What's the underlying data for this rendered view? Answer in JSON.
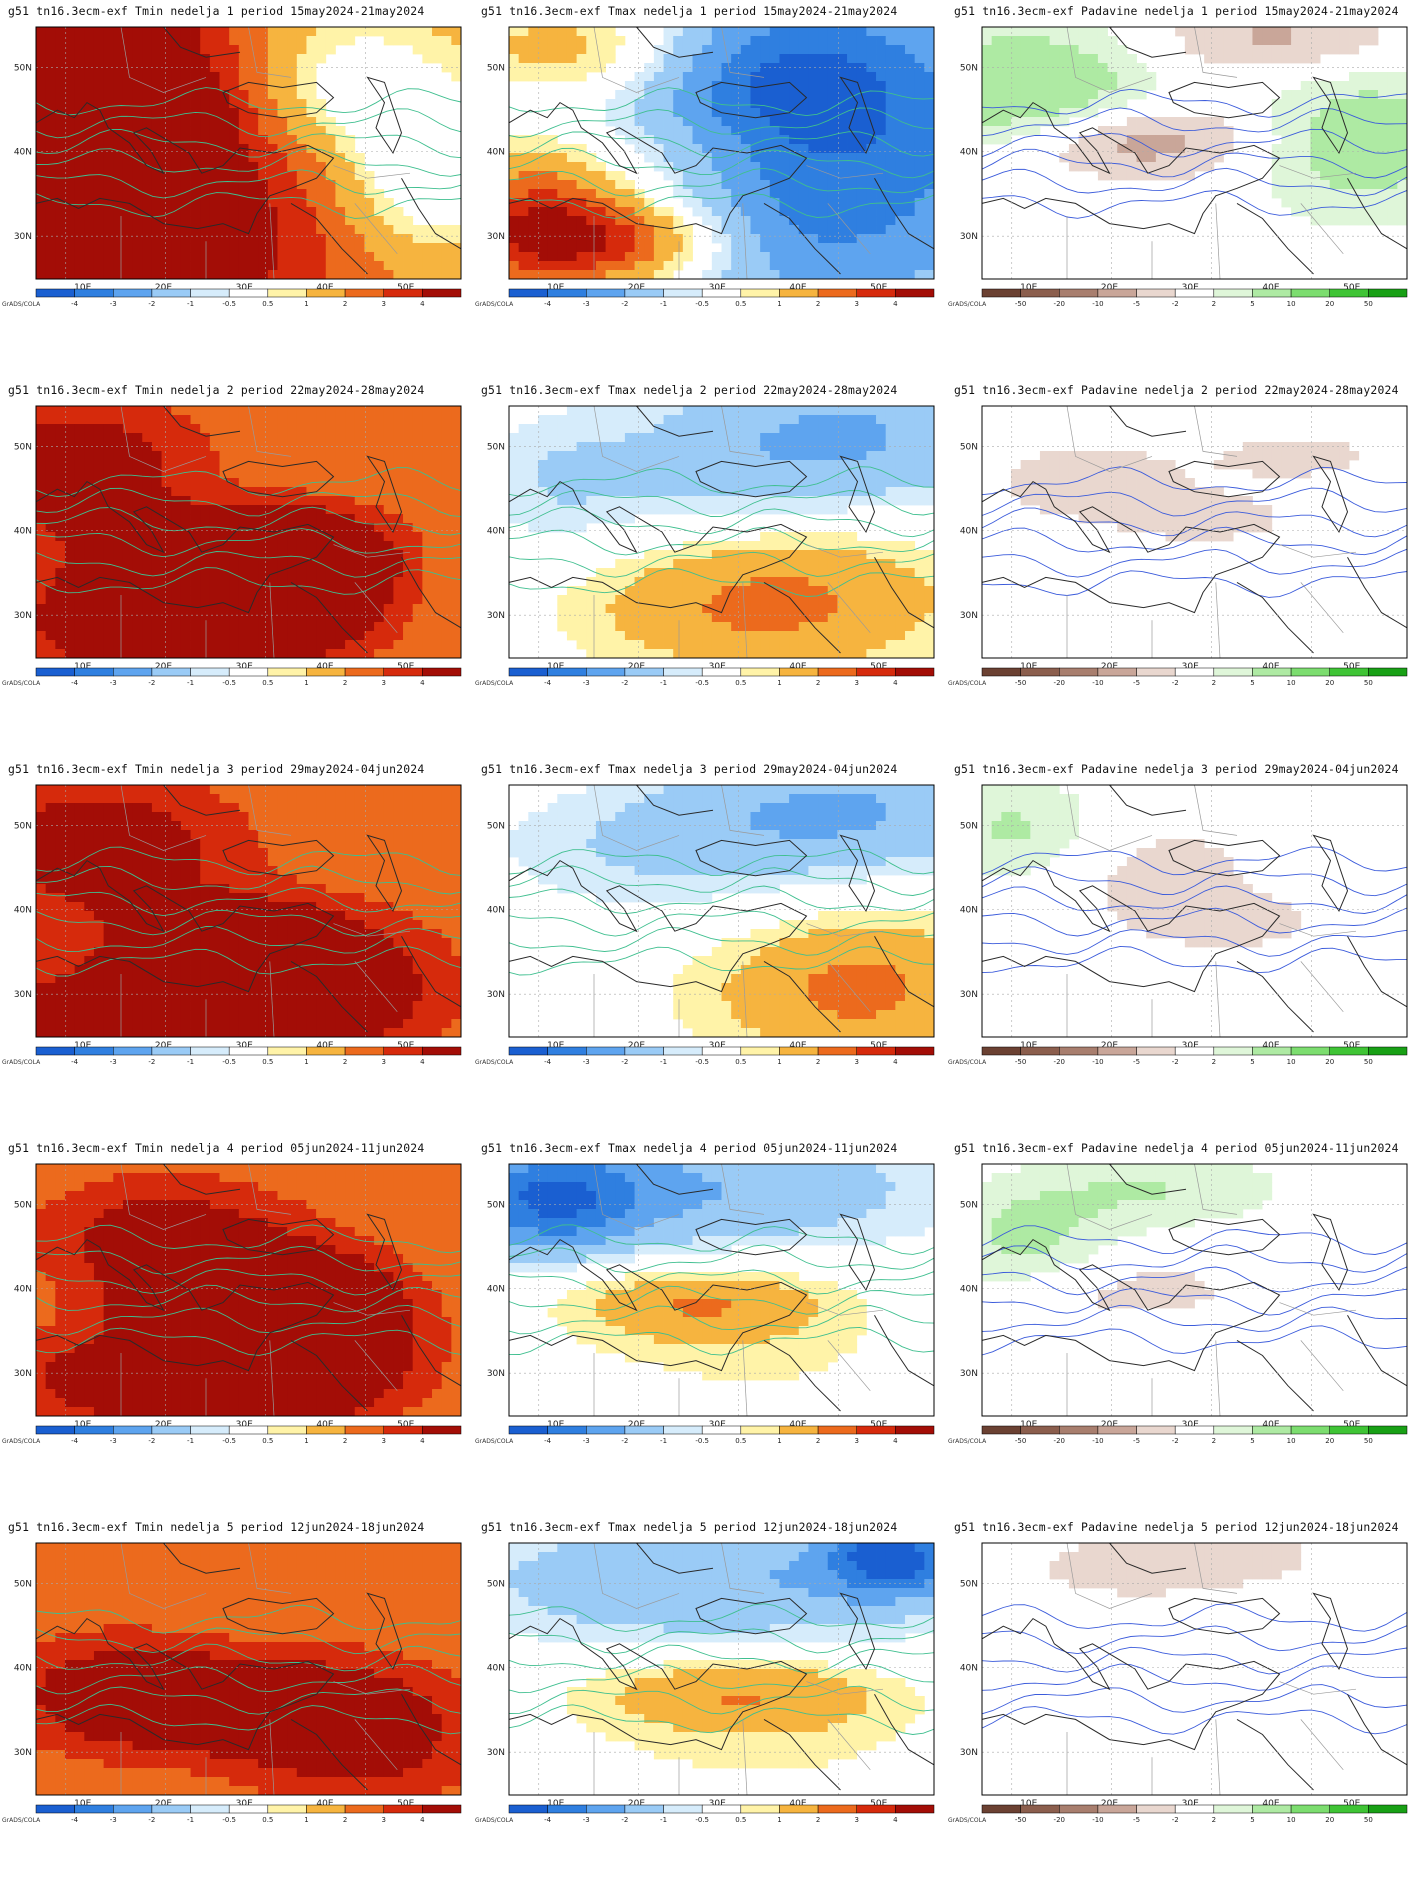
{
  "rows": [
    {
      "week": "1",
      "period": "15may2024-21may2024",
      "panels": [
        {
          "var": "Tmin",
          "title": "g51 tn16.3ecm-exf Tmin nedelja 1 period 15may2024-21may2024",
          "palette": "temp",
          "blobs": [
            [
              0.05,
              0.1,
              0.45,
              0.5,
              4
            ],
            [
              0.28,
              0.35,
              0.18,
              0.18,
              3
            ],
            [
              0.15,
              0.85,
              0.55,
              0.35,
              4
            ],
            [
              0.55,
              0.55,
              0.25,
              0.2,
              1
            ],
            [
              0.8,
              0.4,
              0.35,
              0.4,
              -2
            ],
            [
              0.7,
              0.1,
              0.25,
              0.3,
              -1
            ],
            [
              0.92,
              0.7,
              0.2,
              0.3,
              -1.5
            ]
          ],
          "base": 2
        },
        {
          "var": "Tmax",
          "title": "g51 tn16.3ecm-exf Tmax nedelja 1 period 15may2024-21may2024",
          "palette": "temp",
          "blobs": [
            [
              0.15,
              0.08,
              0.3,
              0.2,
              2
            ],
            [
              0.25,
              0.85,
              0.3,
              0.18,
              4
            ],
            [
              0.05,
              0.75,
              0.2,
              0.3,
              3
            ],
            [
              0.4,
              0.55,
              0.3,
              0.2,
              1
            ],
            [
              0.8,
              0.5,
              0.45,
              0.6,
              -3
            ],
            [
              0.65,
              0.2,
              0.3,
              0.3,
              -2
            ],
            [
              0.55,
              0.8,
              0.3,
              0.25,
              -1
            ]
          ],
          "base": -0.5
        },
        {
          "var": "Padavine",
          "title": "g51 tn16.3ecm-exf Padavine nedelja 1 period 15may2024-21may2024",
          "palette": "prec",
          "blobs": [
            [
              0.1,
              0.25,
              0.3,
              0.25,
              10
            ],
            [
              0.9,
              0.45,
              0.25,
              0.3,
              8
            ],
            [
              0.35,
              0.45,
              0.3,
              0.15,
              -8
            ],
            [
              0.7,
              0.05,
              0.3,
              0.15,
              -6
            ]
          ],
          "base": 0
        }
      ]
    },
    {
      "week": "2",
      "period": "22may2024-28may2024",
      "panels": [
        {
          "var": "Tmin",
          "title": "g51 tn16.3ecm-exf Tmin nedelja 2 period 22may2024-28may2024",
          "palette": "temp",
          "blobs": [
            [
              0.1,
              0.25,
              0.3,
              0.3,
              3
            ],
            [
              0.3,
              0.85,
              0.35,
              0.25,
              4
            ],
            [
              0.65,
              0.7,
              0.2,
              0.25,
              4
            ],
            [
              0.5,
              0.55,
              0.3,
              0.15,
              3
            ],
            [
              0.85,
              0.05,
              0.35,
              0.15,
              0.5
            ]
          ],
          "base": 2
        },
        {
          "var": "Tmax",
          "title": "g51 tn16.3ecm-exf Tmax nedelja 2 period 22may2024-28may2024",
          "palette": "temp",
          "blobs": [
            [
              0.8,
              0.1,
              0.4,
              0.3,
              -2
            ],
            [
              0.4,
              0.3,
              0.4,
              0.25,
              -1
            ],
            [
              0.65,
              0.75,
              0.4,
              0.3,
              2
            ],
            [
              0.45,
              0.85,
              0.4,
              0.2,
              0.5
            ],
            [
              0.1,
              0.3,
              0.15,
              0.3,
              -0.5
            ]
          ],
          "base": 0
        },
        {
          "var": "Padavine",
          "title": "g51 tn16.3ecm-exf Padavine nedelja 2 period 22may2024-28may2024",
          "palette": "prec",
          "blobs": [
            [
              0.25,
              0.3,
              0.3,
              0.2,
              -3
            ],
            [
              0.55,
              0.45,
              0.2,
              0.1,
              -3
            ],
            [
              0.75,
              0.2,
              0.2,
              0.1,
              -3
            ]
          ],
          "base": 0
        }
      ]
    },
    {
      "week": "3",
      "period": "29may2024-04jun2024",
      "panels": [
        {
          "var": "Tmin",
          "title": "g51 tn16.3ecm-exf Tmin nedelja 3 period 29may2024-04jun2024",
          "palette": "temp",
          "blobs": [
            [
              0.15,
              0.25,
              0.35,
              0.3,
              3
            ],
            [
              0.45,
              0.6,
              0.25,
              0.15,
              3
            ],
            [
              0.25,
              0.9,
              0.35,
              0.2,
              4
            ],
            [
              0.7,
              0.8,
              0.3,
              0.3,
              3
            ]
          ],
          "base": 2
        },
        {
          "var": "Tmax",
          "title": "g51 tn16.3ecm-exf Tmax nedelja 3 period 29may2024-04jun2024",
          "palette": "temp",
          "blobs": [
            [
              0.8,
              0.1,
              0.4,
              0.25,
              -2
            ],
            [
              0.35,
              0.25,
              0.4,
              0.25,
              -1
            ],
            [
              0.85,
              0.8,
              0.3,
              0.3,
              2
            ],
            [
              0.6,
              0.85,
              0.35,
              0.25,
              0.5
            ]
          ],
          "base": 0
        },
        {
          "var": "Padavine",
          "title": "g51 tn16.3ecm-exf Padavine nedelja 3 period 29may2024-04jun2024",
          "palette": "prec",
          "blobs": [
            [
              0.08,
              0.18,
              0.2,
              0.2,
              6
            ],
            [
              0.4,
              0.35,
              0.3,
              0.25,
              -3
            ],
            [
              0.6,
              0.55,
              0.2,
              0.1,
              -3
            ]
          ],
          "base": 0
        }
      ]
    },
    {
      "week": "4",
      "period": "05jun2024-11jun2024",
      "panels": [
        {
          "var": "Tmin",
          "title": "g51 tn16.3ecm-exf Tmin nedelja 4 period 05jun2024-11jun2024",
          "palette": "temp",
          "blobs": [
            [
              0.3,
              0.3,
              0.3,
              0.25,
              3
            ],
            [
              0.5,
              0.55,
              0.25,
              0.15,
              4
            ],
            [
              0.65,
              0.65,
              0.25,
              0.3,
              4
            ],
            [
              0.35,
              0.85,
              0.4,
              0.2,
              4
            ],
            [
              0.85,
              0.05,
              0.2,
              0.1,
              0.5
            ]
          ],
          "base": 2
        },
        {
          "var": "Tmax",
          "title": "g51 tn16.3ecm-exf Tmax nedelja 4 period 05jun2024-11jun2024",
          "palette": "temp",
          "blobs": [
            [
              0.4,
              0.1,
              0.6,
              0.25,
              -2
            ],
            [
              0.1,
              0.15,
              0.2,
              0.2,
              -3
            ],
            [
              0.45,
              0.55,
              0.3,
              0.15,
              2
            ],
            [
              0.6,
              0.8,
              0.5,
              0.25,
              0.5
            ]
          ],
          "base": 0
        },
        {
          "var": "Padavine",
          "title": "g51 tn16.3ecm-exf Padavine nedelja 4 period 05jun2024-11jun2024",
          "palette": "prec",
          "blobs": [
            [
              0.1,
              0.3,
              0.2,
              0.2,
              6
            ],
            [
              0.4,
              0.1,
              0.3,
              0.15,
              5
            ],
            [
              0.35,
              0.5,
              0.3,
              0.15,
              -3
            ]
          ],
          "base": 0
        }
      ]
    },
    {
      "week": "5",
      "period": "12jun2024-18jun2024",
      "panels": [
        {
          "var": "Tmin",
          "title": "g51 tn16.3ecm-exf Tmin nedelja 5 period 12jun2024-18jun2024",
          "palette": "temp",
          "blobs": [
            [
              0.2,
              0.6,
              0.3,
              0.25,
              3
            ],
            [
              0.5,
              0.65,
              0.25,
              0.15,
              3
            ],
            [
              0.75,
              0.75,
              0.3,
              0.3,
              3
            ],
            [
              0.85,
              0.1,
              0.2,
              0.2,
              0.5
            ]
          ],
          "base": 2
        },
        {
          "var": "Tmax",
          "title": "g51 tn16.3ecm-exf Tmax nedelja 5 period 12jun2024-18jun2024",
          "palette": "temp",
          "blobs": [
            [
              0.5,
              0.15,
              0.6,
              0.25,
              -2
            ],
            [
              0.9,
              0.05,
              0.15,
              0.15,
              -4
            ],
            [
              0.55,
              0.6,
              0.35,
              0.15,
              2
            ],
            [
              0.6,
              0.85,
              0.5,
              0.2,
              0.5
            ]
          ],
          "base": 0
        },
        {
          "var": "Padavine",
          "title": "g51 tn16.3ecm-exf Padavine nedelja 5 period 12jun2024-18jun2024",
          "palette": "prec",
          "blobs": [
            [
              0.35,
              0.1,
              0.3,
              0.15,
              -3
            ],
            [
              0.6,
              0.05,
              0.2,
              0.1,
              -3
            ]
          ],
          "base": 0
        }
      ]
    }
  ],
  "axes": {
    "lon_ticks": [
      "10E",
      "20E",
      "30E",
      "40E",
      "50E"
    ],
    "lat_ticks": [
      "50N",
      "40N",
      "30N"
    ]
  },
  "colorbars": {
    "temp": {
      "labels": [
        "-4",
        "-3",
        "-2",
        "-1",
        "-0.5",
        "0.5",
        "1",
        "2",
        "3",
        "4"
      ],
      "colors": [
        "#1a5fd1",
        "#2f7fe0",
        "#5ea4ef",
        "#9acbf6",
        "#d6ecfb",
        "#ffffff",
        "#fff3a8",
        "#f6b43f",
        "#ec6a1d",
        "#d62a0c",
        "#a30d06"
      ]
    },
    "prec": {
      "labels": [
        "-50",
        "-20",
        "-10",
        "-5",
        "-2",
        "2",
        "5",
        "10",
        "20",
        "50"
      ],
      "colors": [
        "#6b4132",
        "#8b5e4d",
        "#a87e6e",
        "#c9a699",
        "#e9d7cf",
        "#ffffff",
        "#dff6d9",
        "#aeeaa3",
        "#7cdd6f",
        "#3fc435",
        "#18a015"
      ]
    },
    "credit": "GrADS/COLA"
  }
}
